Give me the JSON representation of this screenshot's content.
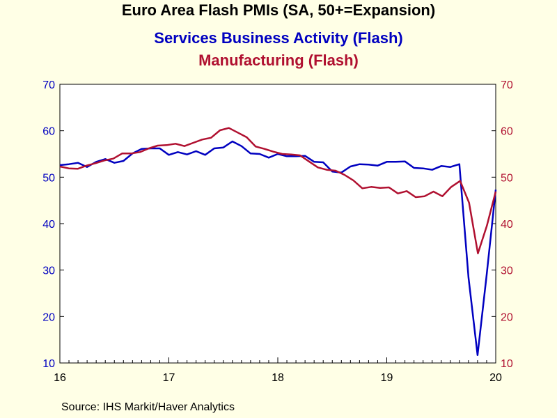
{
  "chart_data": {
    "type": "line",
    "title": "Euro Area Flash PMIs (SA, 50+=Expansion)",
    "source": "Source:  IHS Markit/Haver Analytics",
    "x_tick_labels": [
      "16",
      "17",
      "18",
      "19",
      "20"
    ],
    "y_ticks": [
      10,
      20,
      30,
      40,
      50,
      60,
      70
    ],
    "ylim": [
      10,
      70
    ],
    "ylim_right": [
      10,
      70
    ],
    "background": "#ffffe6",
    "plot_background": "#ffffff",
    "grid": false,
    "series": [
      {
        "name": "Services Business Activity (Flash)",
        "color": "#0000c0",
        "axis": "left",
        "values": [
          52.6,
          52.8,
          53.1,
          52.2,
          53.3,
          53.9,
          53.1,
          53.5,
          55.1,
          56.1,
          56.2,
          56.2,
          54.8,
          55.4,
          54.9,
          55.6,
          54.8,
          56.2,
          56.4,
          57.7,
          56.7,
          55.1,
          55.0,
          54.2,
          55.0,
          54.5,
          54.5,
          54.6,
          53.3,
          53.2,
          51.2,
          51.0,
          52.3,
          52.8,
          52.7,
          52.5,
          53.3,
          53.3,
          53.4,
          52.0,
          51.9,
          51.6,
          52.4,
          52.2,
          52.8,
          28.4,
          11.7,
          29.0,
          47.3
        ]
      },
      {
        "name": "Manufacturing (Flash)",
        "color": "#b01030",
        "axis": "right",
        "values": [
          52.3,
          51.9,
          51.8,
          52.5,
          53.0,
          53.6,
          54.0,
          55.1,
          55.1,
          55.4,
          56.2,
          56.8,
          56.9,
          57.2,
          56.7,
          57.4,
          58.1,
          58.5,
          60.1,
          60.6,
          59.6,
          58.6,
          56.6,
          56.1,
          55.5,
          55.0,
          54.9,
          54.7,
          53.4,
          52.1,
          51.6,
          51.4,
          50.5,
          49.3,
          47.6,
          47.9,
          47.7,
          47.8,
          46.5,
          47.0,
          45.7,
          45.9,
          46.9,
          45.9,
          47.9,
          49.2,
          44.5,
          33.6,
          39.5,
          46.9
        ]
      }
    ]
  }
}
